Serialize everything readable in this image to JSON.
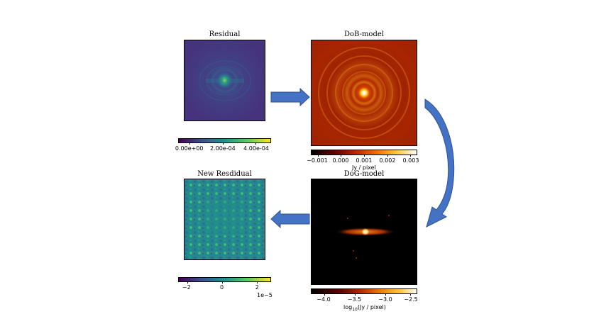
{
  "panels": {
    "residual": {
      "title": "Residual",
      "colorbar_ticks": [
        "0.00e+00",
        "2.00e-04",
        "4.00e-04"
      ]
    },
    "dob_model": {
      "title": "DoB-model",
      "colorbar_ticks": [
        "−0.001",
        "0.000",
        "0.001",
        "0.002",
        "0.003"
      ],
      "colorbar_label": "Jy / pixel"
    },
    "new_residual": {
      "title": "New Resdidual",
      "colorbar_ticks": [
        "−2",
        "0",
        "2"
      ],
      "colorbar_exponent": "1e−5"
    },
    "dog_model": {
      "title": "DoG-model",
      "colorbar_ticks": [
        "−4.0",
        "−3.5",
        "−3.0",
        "−2.5"
      ],
      "colorbar_label_prefix": "log",
      "colorbar_label_sub": "10",
      "colorbar_label_suffix": "(Jy / pixel)"
    }
  },
  "colors": {
    "arrow": "#4472c4",
    "arrow_edge": "#2f528f"
  }
}
